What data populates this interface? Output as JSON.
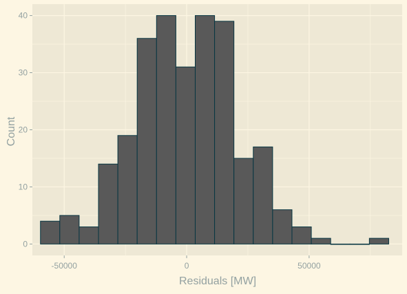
{
  "colors": {
    "page_background": "#fdf6e3",
    "panel_background": "#eee8d5",
    "grid": "#fdf6e3",
    "bar_fill": "#595959",
    "bar_stroke": "#073642",
    "text": "#93a1a1"
  },
  "chart_data": {
    "type": "bar",
    "title": "",
    "xlabel": "Residuals [MW]",
    "ylabel": "Count",
    "grid": true,
    "legend": "none",
    "xlim": [
      -63000,
      88000
    ],
    "ylim": [
      -2,
      42
    ],
    "x_ticks": [
      -50000,
      0,
      50000
    ],
    "x_tick_labels": [
      "-50000",
      "0",
      "50000"
    ],
    "y_ticks": [
      0,
      10,
      20,
      30,
      40
    ],
    "y_tick_labels": [
      "0",
      "10",
      "20",
      "30",
      "40"
    ],
    "bin_width": 7900,
    "bins": [
      {
        "x0": -59700,
        "x1": -51800,
        "count": 4
      },
      {
        "x0": -51800,
        "x1": -43900,
        "count": 5
      },
      {
        "x0": -43900,
        "x1": -36000,
        "count": 3
      },
      {
        "x0": -36000,
        "x1": -28100,
        "count": 14
      },
      {
        "x0": -28100,
        "x1": -20200,
        "count": 19
      },
      {
        "x0": -20200,
        "x1": -12300,
        "count": 36
      },
      {
        "x0": -12300,
        "x1": -4400,
        "count": 40
      },
      {
        "x0": -4400,
        "x1": 3500,
        "count": 31
      },
      {
        "x0": 3500,
        "x1": 11400,
        "count": 40
      },
      {
        "x0": 11400,
        "x1": 19300,
        "count": 39
      },
      {
        "x0": 19300,
        "x1": 27200,
        "count": 15
      },
      {
        "x0": 27200,
        "x1": 35100,
        "count": 17
      },
      {
        "x0": 35100,
        "x1": 43000,
        "count": 6
      },
      {
        "x0": 43000,
        "x1": 50900,
        "count": 3
      },
      {
        "x0": 50900,
        "x1": 58800,
        "count": 1
      },
      {
        "x0": 58800,
        "x1": 66700,
        "count": 0
      },
      {
        "x0": 66700,
        "x1": 74600,
        "count": 0
      },
      {
        "x0": 74600,
        "x1": 82500,
        "count": 1
      }
    ]
  }
}
